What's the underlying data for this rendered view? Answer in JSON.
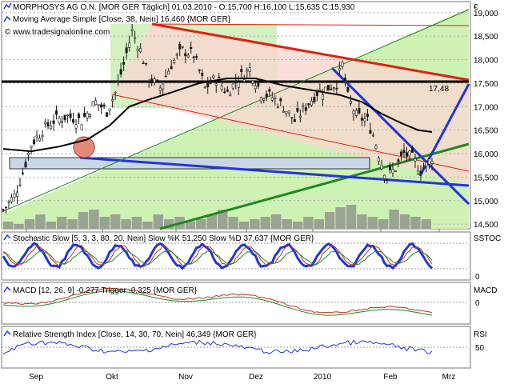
{
  "header": {
    "line1": "MORPHOSYS AG O.N. [MOR GER  Täglich] 01.03.2010 - O:15,700 H:16,100 L:15,635 C:15,930",
    "line2": "Moving Average Simple [Close, 38, Nein] 16,460 {MOR GER}",
    "line3": "© www.tradesignalonline.com",
    "currency": "€"
  },
  "colors": {
    "green_zone": "#c6f0a6",
    "red_zone": "#f9d7cf",
    "price_bar": "#1a1a1a",
    "ma": "#000000",
    "resistance": "#e02010",
    "trendline_blue": "#2233dd",
    "trendline_green": "#1e8a1e",
    "support_black": "#000000"
  },
  "chart_data": [
    {
      "type": "candlestick",
      "title": "MORPHOSYS AG O.N. [MOR GER  Täglich]",
      "ylim": [
        14400,
        19200
      ],
      "y_ticks": [
        "19,000",
        "18,500",
        "18,000",
        "17,500",
        "17,000",
        "16,500",
        "16,000",
        "15,500",
        "15,000",
        "14,500"
      ],
      "x_ticks": [
        "Sep",
        "Okt",
        "Nov",
        "Dez",
        "2010",
        "Feb",
        "Mrz"
      ],
      "annotations": {
        "level_label": "17,48",
        "level_value": 17480
      },
      "price_path": [
        [
          0,
          14800
        ],
        [
          4,
          15100
        ],
        [
          7,
          15600
        ],
        [
          10,
          16200
        ],
        [
          14,
          16500
        ],
        [
          18,
          16700
        ],
        [
          23,
          16800
        ],
        [
          28,
          16700
        ],
        [
          33,
          17100
        ],
        [
          37,
          16900
        ],
        [
          40,
          17300
        ],
        [
          43,
          17900
        ],
        [
          46,
          18600
        ],
        [
          49,
          18200
        ],
        [
          52,
          17600
        ],
        [
          56,
          17400
        ],
        [
          60,
          17900
        ],
        [
          64,
          18200
        ],
        [
          68,
          18100
        ],
        [
          72,
          17400
        ],
        [
          76,
          17600
        ],
        [
          80,
          17300
        ],
        [
          84,
          17600
        ],
        [
          88,
          17800
        ],
        [
          92,
          17300
        ],
        [
          96,
          17200
        ],
        [
          100,
          17000
        ],
        [
          104,
          16700
        ],
        [
          108,
          17000
        ],
        [
          112,
          17300
        ],
        [
          116,
          17400
        ],
        [
          119,
          17500
        ],
        [
          121,
          17900
        ],
        [
          123,
          17200
        ],
        [
          126,
          16800
        ],
        [
          130,
          16700
        ],
        [
          132,
          16400
        ],
        [
          135,
          15800
        ],
        [
          137,
          15500
        ],
        [
          140,
          15700
        ],
        [
          143,
          16000
        ],
        [
          146,
          15900
        ],
        [
          149,
          15650
        ],
        [
          151,
          15750
        ],
        [
          153,
          15930
        ]
      ],
      "ma_path": [
        [
          0,
          16100
        ],
        [
          10,
          16050
        ],
        [
          20,
          16150
        ],
        [
          30,
          16300
        ],
        [
          38,
          16600
        ],
        [
          45,
          17000
        ],
        [
          52,
          17150
        ],
        [
          60,
          17300
        ],
        [
          70,
          17500
        ],
        [
          80,
          17600
        ],
        [
          90,
          17600
        ],
        [
          100,
          17450
        ],
        [
          110,
          17350
        ],
        [
          120,
          17250
        ],
        [
          128,
          17100
        ],
        [
          135,
          16850
        ],
        [
          142,
          16650
        ],
        [
          148,
          16500
        ],
        [
          153,
          16460
        ]
      ],
      "volume_path": [
        3,
        2,
        4,
        6,
        3,
        5,
        4,
        7,
        8,
        5,
        6,
        4,
        5,
        3,
        6,
        4,
        5,
        3,
        4,
        6,
        8,
        5,
        3,
        4,
        5,
        6,
        4,
        3,
        5,
        4,
        7,
        9,
        10,
        6,
        5,
        4,
        8,
        6,
        5,
        4
      ],
      "stochastic_label": "Stochastic Slow [5, 3, 3, 80, 20, Nein] Slow %K 51,250 Slow %D 37,637 {MOR GER}",
      "stochastic_tick_label": "SSTOC",
      "stochastic_ticks": [
        "0"
      ],
      "macd_label": "MACD [12, 26, 9] -0,277 Trigger -0,325 {MOR GER}",
      "macd_tick_label": "MACD",
      "macd_ticks": [
        "0"
      ],
      "rsi_label": "Relative Strength Index [Close, 14, 30, 70, Nein] 46,349 {MOR GER}",
      "rsi_tick_label": "RSI",
      "rsi_ticks": [
        "50"
      ]
    }
  ]
}
